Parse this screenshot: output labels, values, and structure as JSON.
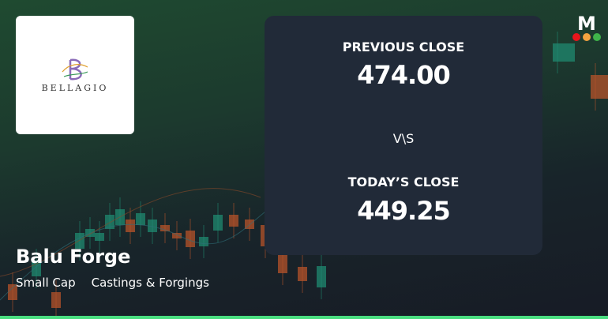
{
  "company": {
    "name": "Balu Forge",
    "market_cap": "Small Cap",
    "industry": "Castings & Forgings",
    "logo_text": "BELLAGIO"
  },
  "comparison": {
    "previous_label": "PREVIOUS CLOSE",
    "previous_value": "474.00",
    "vs_label": "V\\S",
    "today_label": "TODAY’S CLOSE",
    "today_value": "449.25"
  },
  "brand": {
    "letter": "M",
    "dot_colors": [
      "#e8151b",
      "#f4a340",
      "#3fb54a"
    ]
  },
  "colors": {
    "accent_bar": "#4ade80",
    "panel": "#212a38",
    "candle_up": "#1f8a70",
    "candle_down": "#b5532a"
  }
}
